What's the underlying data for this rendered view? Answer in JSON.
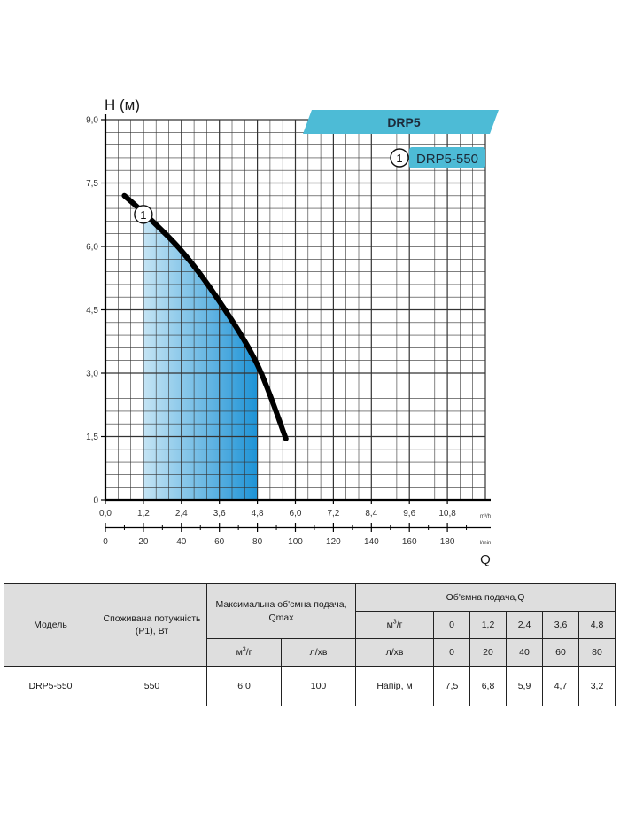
{
  "chart_data": {
    "type": "line",
    "title": "DRP5",
    "ylabel": "H (м)",
    "xlabel": "Q",
    "x_unit_primary": "m³/h",
    "x_unit_secondary": "l/min",
    "xlim": [
      0,
      12
    ],
    "ylim": [
      0,
      9
    ],
    "x_ticks": [
      "0,0",
      "1,2",
      "2,4",
      "3,6",
      "4,8",
      "6,0",
      "7,2",
      "8,4",
      "9,6",
      "10,8"
    ],
    "x_tick_values": [
      0,
      1.2,
      2.4,
      3.6,
      4.8,
      6.0,
      7.2,
      8.4,
      9.6,
      10.8
    ],
    "secondary_ticks": [
      "0",
      "20",
      "40",
      "60",
      "80",
      "100",
      "120",
      "140",
      "160",
      "180"
    ],
    "secondary_tick_values": [
      0,
      20,
      40,
      60,
      80,
      100,
      120,
      140,
      160,
      180
    ],
    "y_ticks": [
      "0",
      "1,5",
      "3,0",
      "4,5",
      "6,0",
      "7,5",
      "9,0"
    ],
    "y_tick_values": [
      0,
      1.5,
      3.0,
      4.5,
      6.0,
      7.5,
      9.0
    ],
    "grid": true,
    "series": [
      {
        "name": "DRP5-550",
        "marker": "1",
        "color": "#000000",
        "x": [
          0.6,
          1.2,
          2.4,
          3.6,
          4.8,
          5.7
        ],
        "y": [
          7.2,
          6.8,
          5.9,
          4.7,
          3.2,
          1.45
        ]
      }
    ],
    "working_range": {
      "x": [
        1.2,
        4.8
      ],
      "colors": [
        "#c4e4f4",
        "#1e93d6"
      ]
    },
    "legend": {
      "position": "top-right",
      "entries": [
        {
          "marker": "1",
          "label": "DRP5-550"
        }
      ]
    },
    "accent_color": "#4dbbd6"
  },
  "table": {
    "col_model": "Модель",
    "col_power": "Споживана потужність (P1), Вт",
    "col_qmax": "Максимальна об'ємна подача, Qmax",
    "col_flow": "Об'ємна подача,Q",
    "unit_m3_prefix": "м",
    "unit_m3_sup": "3",
    "unit_m3_suffix": "/г",
    "unit_lmin": "л/хв",
    "flow_m3": [
      "0",
      "1,2",
      "2,4",
      "3,6",
      "4,8"
    ],
    "flow_lmin": [
      "0",
      "20",
      "40",
      "60",
      "80"
    ],
    "head_label": "Напір, м",
    "row": {
      "model": "DRP5-550",
      "power": "550",
      "qmax_m3": "6,0",
      "qmax_lmin": "100",
      "heads": [
        "7,5",
        "6,8",
        "5,9",
        "4,7",
        "3,2"
      ]
    }
  }
}
